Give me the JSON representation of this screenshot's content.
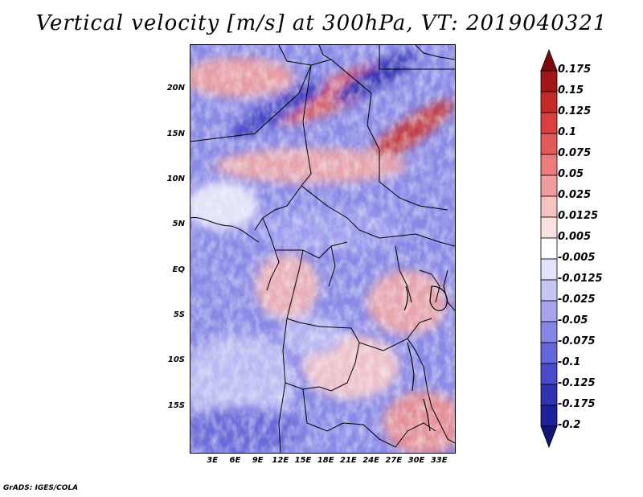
{
  "title": "Vertical velocity [m/s] at 300hPa, VT: 2019040321",
  "credit": "GrADS: IGES/COLA",
  "map": {
    "lat_labels": [
      "20N",
      "15N",
      "10N",
      "5N",
      "EQ",
      "5S",
      "10S",
      "15S"
    ],
    "lat_values": [
      20,
      15,
      10,
      5,
      0,
      -5,
      -10,
      -15
    ],
    "lon_labels": [
      "3E",
      "6E",
      "9E",
      "12E",
      "15E",
      "18E",
      "21E",
      "24E",
      "27E",
      "30E",
      "33E"
    ],
    "lon_values": [
      3,
      6,
      9,
      12,
      15,
      18,
      21,
      24,
      27,
      30,
      33
    ],
    "lon_range": [
      0,
      35
    ],
    "lat_range": [
      -20,
      25
    ]
  },
  "colorbar": {
    "labels": [
      "0.175",
      "0.15",
      "0.125",
      "0.1",
      "0.075",
      "0.05",
      "0.025",
      "0.0125",
      "0.005",
      "-0.005",
      "-0.0125",
      "-0.025",
      "-0.05",
      "-0.075",
      "-0.1",
      "-0.125",
      "-0.175",
      "-0.2"
    ],
    "colors": [
      "#7a0a0a",
      "#a31616",
      "#c42a2a",
      "#d94040",
      "#e35a5a",
      "#ec7b7b",
      "#f29d9d",
      "#f7c2c2",
      "#fbe2e2",
      "#ffffff",
      "#e2e2fb",
      "#c6c6f6",
      "#a4a4ef",
      "#8585e7",
      "#6666dc",
      "#4a4acb",
      "#3232b4",
      "#20209a",
      "#141478"
    ]
  }
}
